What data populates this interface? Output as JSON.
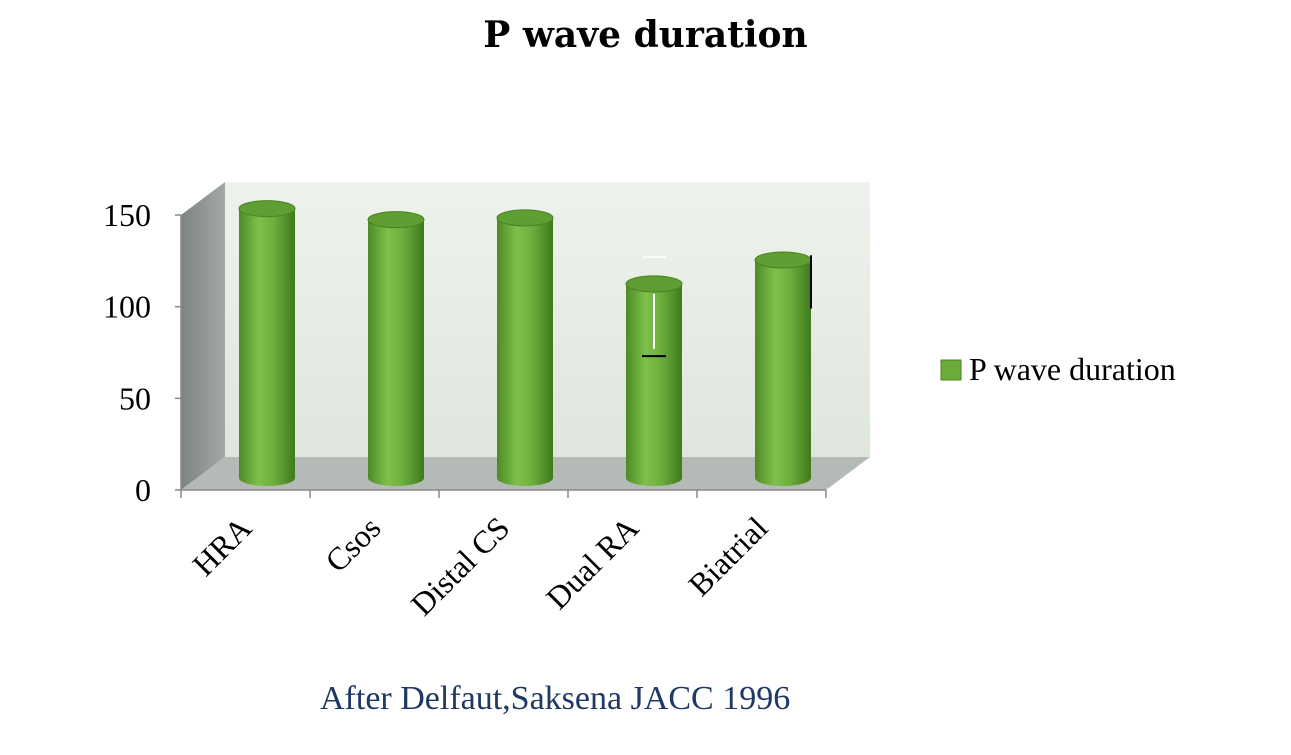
{
  "title": "P wave duration",
  "caption": "After Delfaut,Saksena  JACC 1996",
  "chart_data": {
    "type": "bar",
    "style": "3d-cylinder",
    "title": "P wave duration",
    "categories": [
      "HRA",
      "Csos",
      "Distal CS",
      "Dual RA",
      "Biatrial"
    ],
    "series": [
      {
        "name": "P wave duration",
        "values": [
          148,
          142,
          143,
          107,
          120
        ],
        "color": "#6aab3a"
      }
    ],
    "error_bars": [
      {
        "category": "Dual RA",
        "values": [
          127,
          107,
          77,
          73
        ]
      },
      {
        "category": "Biatrial",
        "values": [
          128,
          99
        ]
      }
    ],
    "ylim": [
      0,
      150
    ],
    "yticks": [
      "0",
      "50",
      "100",
      "150"
    ],
    "xlabel": "",
    "ylabel": "",
    "legend": {
      "position": "right",
      "entries": [
        "P wave duration"
      ]
    },
    "colors": {
      "bar": "#6aab3a",
      "wall": "#e8eee6",
      "side_wall": "#8a908c",
      "floor": "#b4bab5"
    }
  }
}
